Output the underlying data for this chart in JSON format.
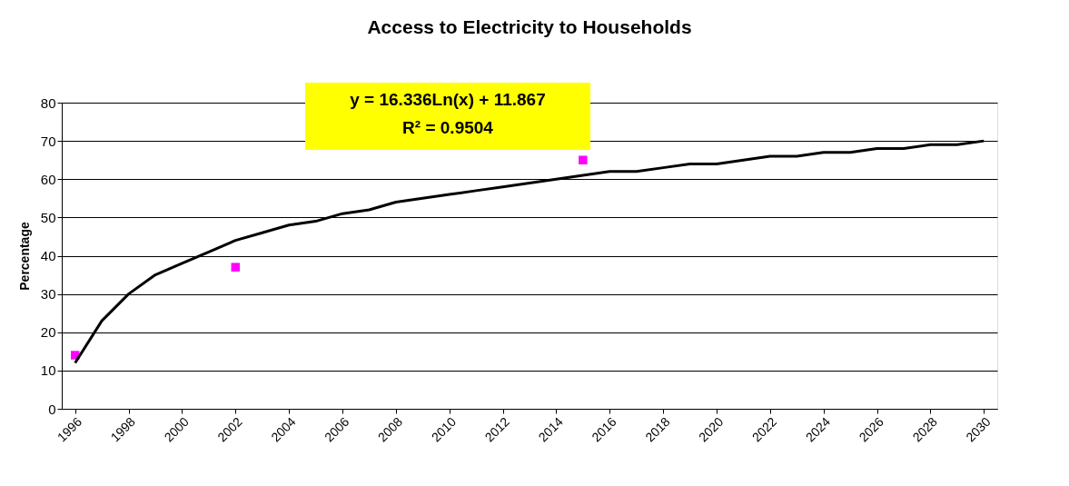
{
  "chart_data": {
    "type": "scatter",
    "title": "Access to Electricity to Households",
    "ylabel": "Percentage",
    "xlim": [
      1995.5,
      2030.5
    ],
    "xticks": [
      1996,
      1998,
      2000,
      2002,
      2004,
      2006,
      2008,
      2010,
      2012,
      2014,
      2016,
      2018,
      2020,
      2022,
      2024,
      2026,
      2028,
      2030
    ],
    "ylim": [
      0,
      80
    ],
    "yticks": [
      0,
      10,
      20,
      30,
      40,
      50,
      60,
      70,
      80
    ],
    "grid": "y",
    "annotations": [
      "y = 16.336Ln(x) + 11.867",
      "R² = 0.9504"
    ],
    "series": [
      {
        "color": "#ff00ff",
        "marker": "square",
        "x": [
          1996,
          2002,
          2015
        ],
        "values": [
          14,
          37,
          65
        ]
      },
      {
        "type": "line",
        "color": "#000000",
        "marker": "none",
        "line_style": "solid",
        "x": [
          1996,
          1997,
          1998,
          1999,
          2000,
          2001,
          2002,
          2003,
          2004,
          2005,
          2006,
          2007,
          2008,
          2009,
          2010,
          2011,
          2012,
          2013,
          2014,
          2015,
          2016,
          2017,
          2018,
          2019,
          2020,
          2021,
          2022,
          2023,
          2024,
          2025,
          2026,
          2027,
          2028,
          2029,
          2030
        ],
        "values": [
          12,
          23,
          30,
          35,
          38,
          41,
          44,
          46,
          48,
          49,
          51,
          52,
          54,
          55,
          56,
          57,
          58,
          59,
          60,
          61,
          62,
          62,
          63,
          64,
          64,
          65,
          66,
          66,
          67,
          67,
          68,
          68,
          69,
          69,
          70
        ]
      }
    ]
  }
}
